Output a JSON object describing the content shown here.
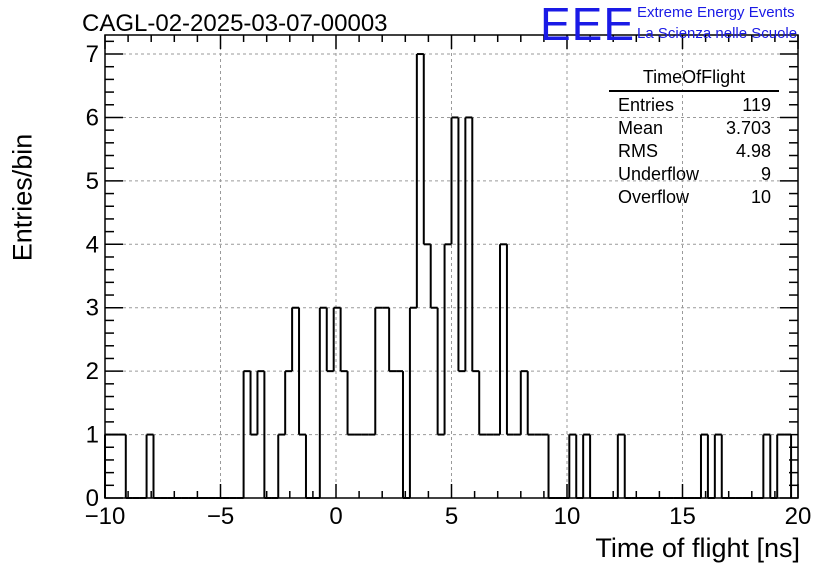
{
  "header": {
    "title": "CAGL-02-2025-03-07-00003",
    "logo_text": "EEE",
    "logo_line1": "Extreme Energy Events",
    "logo_line2": "La Scienza nelle Scuole"
  },
  "stats_box": {
    "title": "TimeOfFlight",
    "rows": [
      {
        "label": "Entries",
        "value": "119"
      },
      {
        "label": "Mean",
        "value": "3.703"
      },
      {
        "label": "RMS",
        "value": "4.98"
      },
      {
        "label": "Underflow",
        "value": "9"
      },
      {
        "label": "Overflow",
        "value": "10"
      }
    ]
  },
  "chart_data": {
    "type": "histogram",
    "title": "CAGL-02-2025-03-07-00003",
    "xlabel": "Time of flight [ns]",
    "ylabel": "Entries/bin",
    "xlim": [
      -10,
      20
    ],
    "ylim": [
      0,
      7.3
    ],
    "bin_width": 0.3,
    "x_ticks": [
      -10,
      -5,
      0,
      5,
      10,
      15,
      20
    ],
    "x_tick_labels": [
      "−10",
      "−5",
      "0",
      "5",
      "10",
      "15",
      "20"
    ],
    "y_ticks": [
      0,
      1,
      2,
      3,
      4,
      5,
      6,
      7
    ],
    "y_tick_labels": [
      "0",
      "1",
      "2",
      "3",
      "4",
      "5",
      "6",
      "7"
    ],
    "grid": true,
    "line_color": "#000000",
    "bins": [
      [
        -10.0,
        1
      ],
      [
        -9.7,
        1
      ],
      [
        -9.4,
        1
      ],
      [
        -9.1,
        0
      ],
      [
        -8.8,
        0
      ],
      [
        -8.5,
        0
      ],
      [
        -8.2,
        1
      ],
      [
        -7.9,
        0
      ],
      [
        -7.6,
        0
      ],
      [
        -7.3,
        0
      ],
      [
        -7.0,
        0
      ],
      [
        -6.7,
        0
      ],
      [
        -6.4,
        0
      ],
      [
        -6.1,
        0
      ],
      [
        -5.8,
        0
      ],
      [
        -5.5,
        0
      ],
      [
        -5.2,
        0
      ],
      [
        -4.9,
        0
      ],
      [
        -4.6,
        0
      ],
      [
        -4.3,
        0
      ],
      [
        -4.0,
        2
      ],
      [
        -3.7,
        1
      ],
      [
        -3.4,
        2
      ],
      [
        -3.1,
        0
      ],
      [
        -2.8,
        0
      ],
      [
        -2.5,
        1
      ],
      [
        -2.2,
        2
      ],
      [
        -1.9,
        3
      ],
      [
        -1.6,
        1
      ],
      [
        -1.3,
        0
      ],
      [
        -1.0,
        0
      ],
      [
        -0.7,
        3
      ],
      [
        -0.4,
        2
      ],
      [
        -0.1,
        3
      ],
      [
        0.2,
        2
      ],
      [
        0.5,
        1
      ],
      [
        0.8,
        1
      ],
      [
        1.1,
        1
      ],
      [
        1.4,
        1
      ],
      [
        1.7,
        3
      ],
      [
        2.0,
        3
      ],
      [
        2.3,
        2
      ],
      [
        2.6,
        2
      ],
      [
        2.9,
        0
      ],
      [
        3.2,
        3
      ],
      [
        3.5,
        7
      ],
      [
        3.8,
        4
      ],
      [
        4.1,
        3
      ],
      [
        4.4,
        1
      ],
      [
        4.7,
        4
      ],
      [
        5.0,
        6
      ],
      [
        5.3,
        2
      ],
      [
        5.6,
        6
      ],
      [
        5.9,
        2
      ],
      [
        6.2,
        1
      ],
      [
        6.5,
        1
      ],
      [
        6.8,
        1
      ],
      [
        7.1,
        4
      ],
      [
        7.4,
        1
      ],
      [
        7.7,
        1
      ],
      [
        8.0,
        2
      ],
      [
        8.3,
        1
      ],
      [
        8.6,
        1
      ],
      [
        8.9,
        1
      ],
      [
        9.2,
        0
      ],
      [
        9.5,
        0
      ],
      [
        9.8,
        0
      ],
      [
        10.1,
        1
      ],
      [
        10.4,
        0
      ],
      [
        10.7,
        1
      ],
      [
        11.0,
        0
      ],
      [
        11.3,
        0
      ],
      [
        11.6,
        0
      ],
      [
        11.9,
        0
      ],
      [
        12.2,
        1
      ],
      [
        12.5,
        0
      ],
      [
        12.8,
        0
      ],
      [
        13.1,
        0
      ],
      [
        13.4,
        0
      ],
      [
        13.7,
        0
      ],
      [
        14.0,
        0
      ],
      [
        14.3,
        0
      ],
      [
        14.6,
        0
      ],
      [
        14.9,
        0
      ],
      [
        15.2,
        0
      ],
      [
        15.5,
        0
      ],
      [
        15.8,
        1
      ],
      [
        16.1,
        0
      ],
      [
        16.4,
        1
      ],
      [
        16.7,
        0
      ],
      [
        17.0,
        0
      ],
      [
        17.3,
        0
      ],
      [
        17.6,
        0
      ],
      [
        17.9,
        0
      ],
      [
        18.2,
        0
      ],
      [
        18.5,
        1
      ],
      [
        18.8,
        0
      ],
      [
        19.1,
        1
      ],
      [
        19.4,
        1
      ]
    ]
  }
}
